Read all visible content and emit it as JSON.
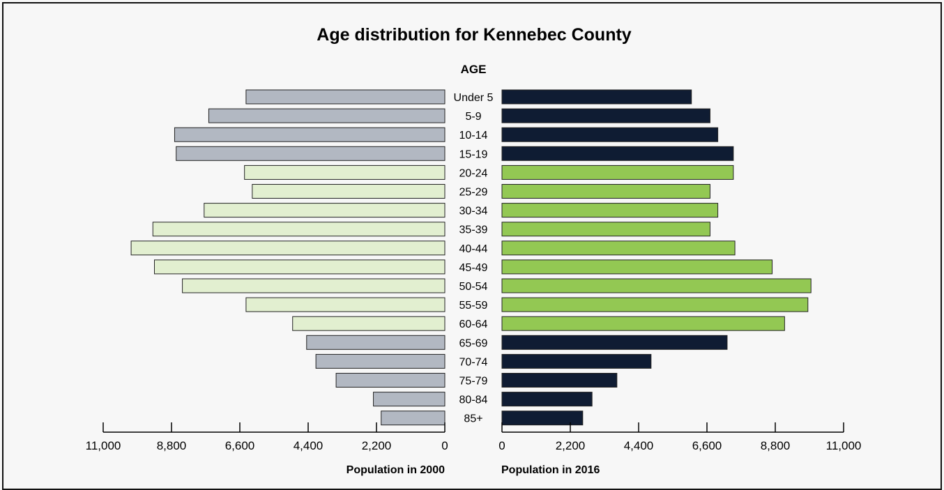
{
  "chart_data": {
    "type": "bar",
    "subtype": "population-pyramid",
    "title": "Age distribution for Kennebec County",
    "category_axis_label": "AGE",
    "categories": [
      "Under 5",
      "5-9",
      "10-14",
      "15-19",
      "20-24",
      "25-29",
      "30-34",
      "35-39",
      "40-44",
      "45-49",
      "50-54",
      "55-59",
      "60-64",
      "65-69",
      "70-74",
      "75-79",
      "80-84",
      "85+"
    ],
    "series": [
      {
        "name": "Population in 2000",
        "side": "left",
        "values": [
          6400,
          7600,
          8700,
          8650,
          6450,
          6200,
          7750,
          9400,
          10100,
          9350,
          8450,
          6400,
          4900,
          4450,
          4150,
          3500,
          2300,
          2050
        ],
        "colors": [
          "#b2b8c2",
          "#b2b8c2",
          "#b2b8c2",
          "#b2b8c2",
          "#e2efd0",
          "#e2efd0",
          "#e2efd0",
          "#e2efd0",
          "#e2efd0",
          "#e2efd0",
          "#e2efd0",
          "#e2efd0",
          "#e2efd0",
          "#b2b8c2",
          "#b2b8c2",
          "#b2b8c2",
          "#b2b8c2",
          "#b2b8c2"
        ]
      },
      {
        "name": "Population in 2016",
        "side": "right",
        "values": [
          6100,
          6700,
          6950,
          7450,
          7450,
          6700,
          6950,
          6700,
          7500,
          8700,
          9950,
          9850,
          9100,
          7250,
          4800,
          3700,
          2900,
          2600
        ],
        "colors": [
          "#0f1c33",
          "#0f1c33",
          "#0f1c33",
          "#0f1c33",
          "#93c853",
          "#93c853",
          "#93c853",
          "#93c853",
          "#93c853",
          "#93c853",
          "#93c853",
          "#93c853",
          "#93c853",
          "#0f1c33",
          "#0f1c33",
          "#0f1c33",
          "#0f1c33",
          "#0f1c33"
        ]
      }
    ],
    "x_ticks": [
      "0",
      "2,200",
      "4,400",
      "6,600",
      "8,800",
      "11,000"
    ],
    "xlim": [
      0,
      11000
    ],
    "xlabel_left": "Population in 2000",
    "xlabel_right": "Population in 2016",
    "grid": false,
    "legend": "none"
  }
}
